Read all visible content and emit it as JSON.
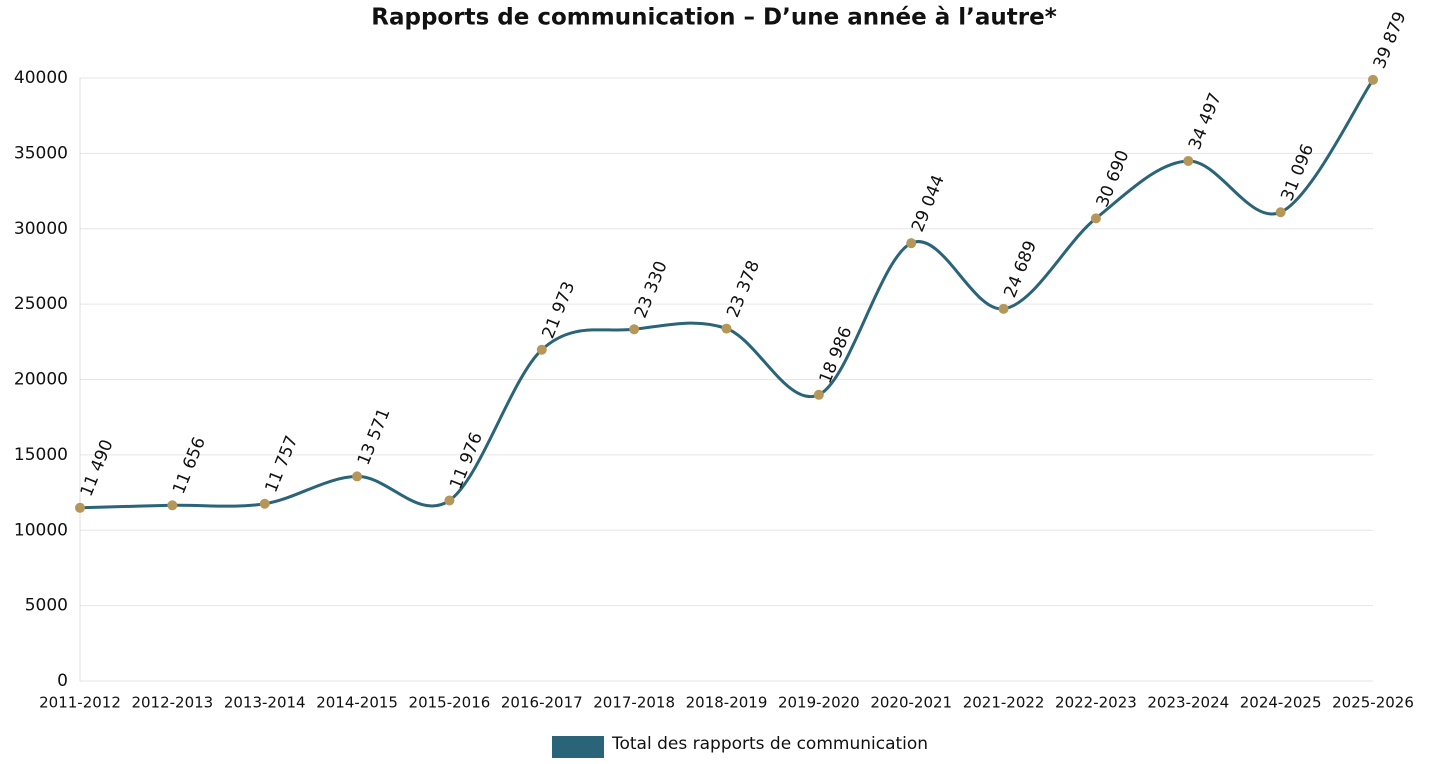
{
  "chart_data": {
    "type": "line",
    "title": "Rapports de communication – D’une année à l’autre*",
    "categories": [
      "2011-2012",
      "2012-2013",
      "2013-2014",
      "2014-2015",
      "2015-2016",
      "2016-2017",
      "2017-2018",
      "2018-2019",
      "2019-2020",
      "2020-2021",
      "2021-2022",
      "2022-2023",
      "2023-2024",
      "2024-2025",
      "2025-2026"
    ],
    "series": [
      {
        "name": "Total des rapports de communication",
        "color": "#2a6478",
        "marker_color": "#b5975a",
        "values": [
          11490,
          11656,
          11757,
          13571,
          11976,
          21973,
          23330,
          23378,
          18986,
          29044,
          24689,
          30690,
          34497,
          31096,
          39879
        ],
        "value_labels": [
          "11 490",
          "11 656",
          "11 757",
          "13 571",
          "11 976",
          "21 973",
          "23 330",
          "23 378",
          "18 986",
          "29 044",
          "24 689",
          "30 690",
          "34 497",
          "31 096",
          "39 879"
        ]
      }
    ],
    "ylim": [
      0,
      40000
    ],
    "yticks": [
      0,
      5000,
      10000,
      15000,
      20000,
      25000,
      30000,
      35000,
      40000
    ],
    "grid": true,
    "legend": "bottom"
  }
}
